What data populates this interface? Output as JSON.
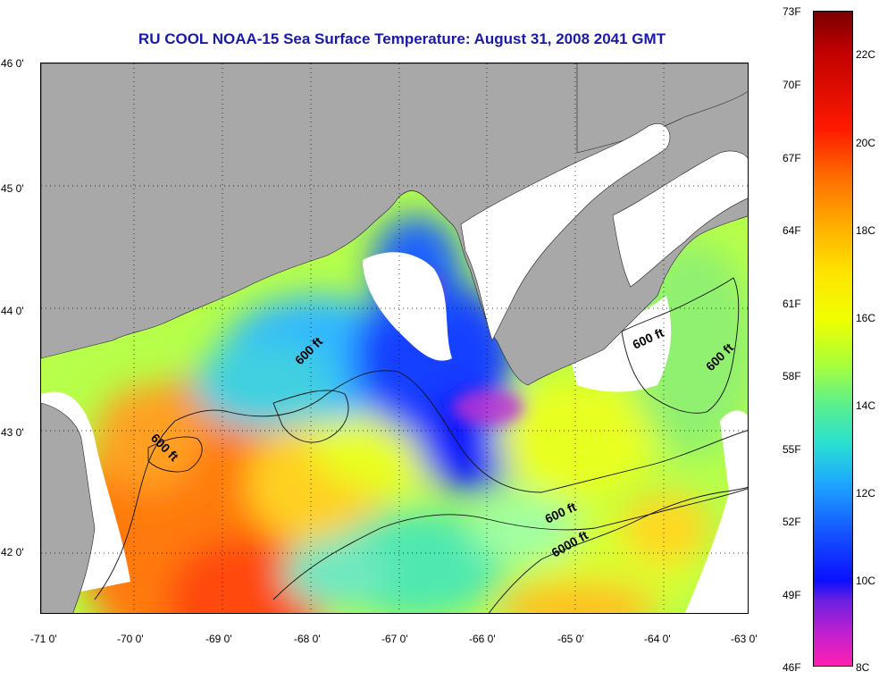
{
  "title": "RU COOL  NOAA-15  Sea Surface Temperature:  August 31, 2008 2041 GMT",
  "latitude_labels": [
    "46 0'",
    "45 0'",
    "44 0'",
    "43 0'",
    "42 0'"
  ],
  "longitude_labels": [
    "-71 0'",
    "-70 0'",
    "-69 0'",
    "-68 0'",
    "-67 0'",
    "-66 0'",
    "-65 0'",
    "-64 0'",
    "-63 0'"
  ],
  "colorbar": {
    "fahrenheit": [
      "73F",
      "70F",
      "67F",
      "64F",
      "61F",
      "58F",
      "55F",
      "52F",
      "49F",
      "46F"
    ],
    "celsius": [
      "22C",
      "20C",
      "18C",
      "16C",
      "14C",
      "12C",
      "10C",
      "8C"
    ]
  },
  "contour_labels": [
    "600 ft",
    "600 ft",
    "600 ft",
    "600 ft",
    "600 ft",
    "6000 ft"
  ],
  "colors": {
    "land": "#a8a8a8",
    "title": "#1a1aa8",
    "grid": "#000000"
  }
}
